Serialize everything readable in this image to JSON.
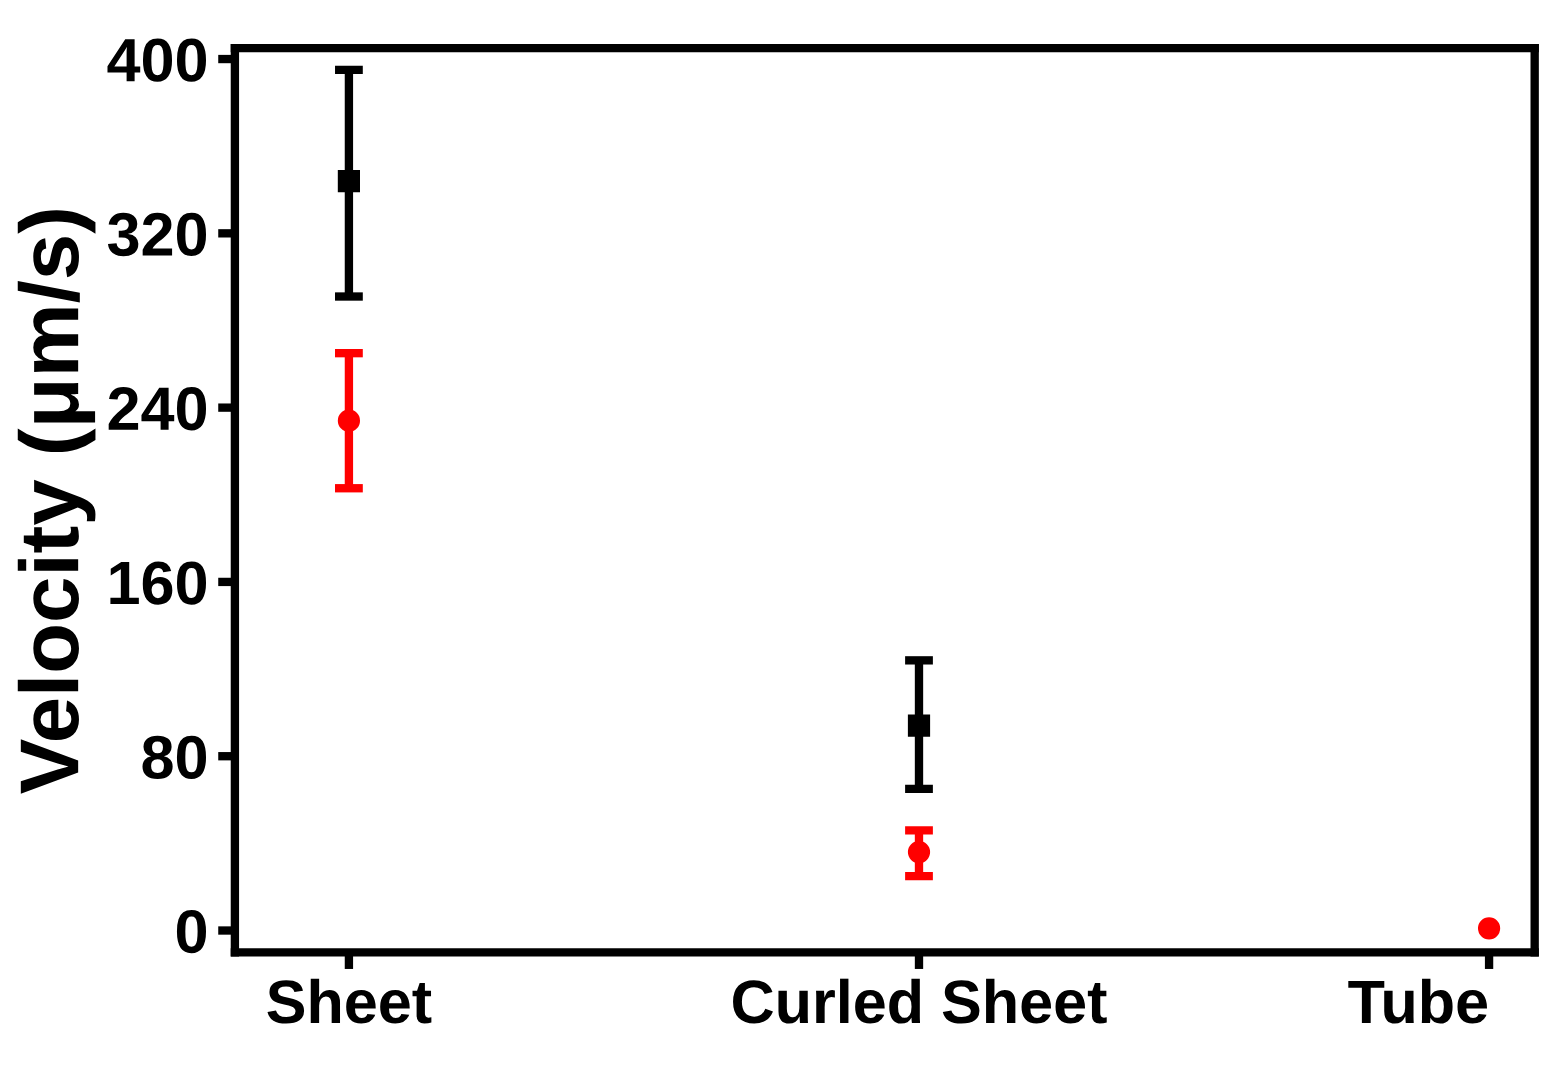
{
  "chart_data": {
    "type": "scatter",
    "ylabel": "Velocity (μm/s)",
    "categories": [
      "Sheet",
      "Curled Sheet",
      "Tube"
    ],
    "series": [
      {
        "color": "#000000",
        "marker": "square",
        "values": [
          344,
          94,
          null
        ],
        "errors": [
          [
            291,
            395
          ],
          [
            65,
            124
          ],
          null
        ]
      },
      {
        "color": "#ff0000",
        "marker": "circle",
        "values": [
          234,
          36,
          1
        ],
        "errors": [
          [
            203,
            265
          ],
          [
            25,
            46
          ],
          null
        ]
      }
    ],
    "ylim": [
      -10,
      405
    ],
    "yticks": [
      0,
      80,
      160,
      240,
      320,
      400
    ],
    "grid": false,
    "legend": false
  }
}
